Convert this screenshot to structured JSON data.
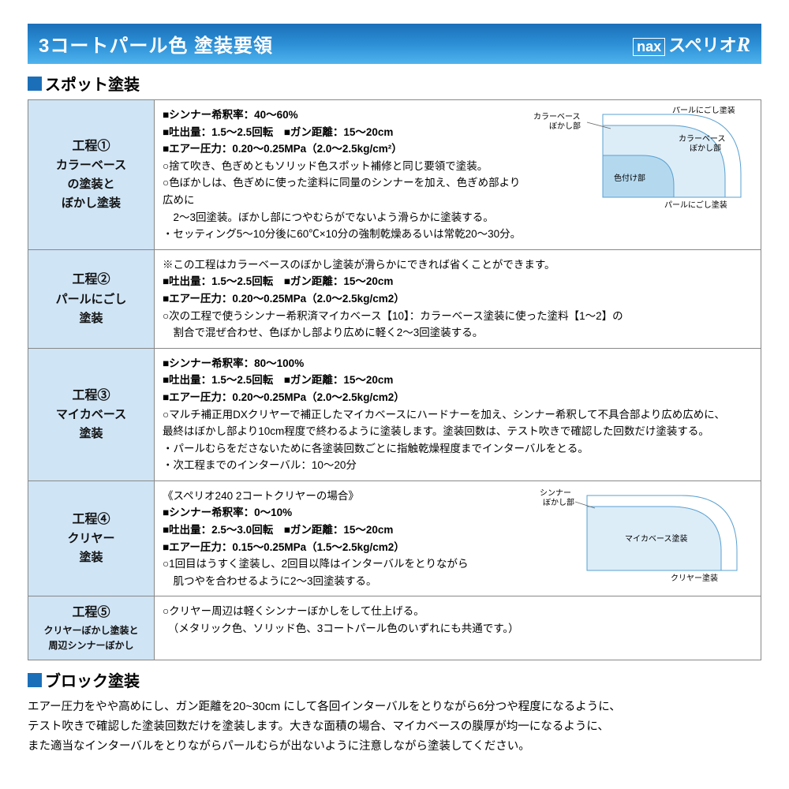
{
  "header": {
    "title": "3コートパール色 塗装要領",
    "brand_nax": "nax",
    "brand_name": "スペリオ",
    "brand_r": "R"
  },
  "section_spot_title": "スポット塗装",
  "section_block_title": "ブロック塗装",
  "rows": [
    {
      "step_no": "工程①",
      "step_name": "カラーベース\nの塗装と\nぼかし塗装",
      "lines": [
        {
          "mark": "square",
          "text": "シンナー希釈率：40～60%"
        },
        {
          "mark": "square",
          "text": "吐出量：1.5～2.5回転　■ガン距離：15～20cm"
        },
        {
          "mark": "square",
          "text": "エアー圧力：0.20～0.25MPa（2.0～2.5kg/cm²）"
        },
        {
          "mark": "circle",
          "text": "捨て吹き、色ぎめともソリッド色スポット補修と同じ要領で塗装。"
        },
        {
          "mark": "circle",
          "text": "色ぼかしは、色ぎめに使った塗料に同量のシンナーを加え、色ぎめ部より広めに\n　2～3回塗装。ぼかし部につやむらがでないよう滑らかに塗装する。"
        },
        {
          "mark": "dot",
          "text": "セッティング5～10分後に60℃×10分の強制乾燥あるいは常乾20～30分。"
        }
      ],
      "diagram": "d1"
    },
    {
      "step_no": "工程②",
      "step_name": "パールにごし\n塗装",
      "lines": [
        {
          "mark": "note",
          "text": "この工程はカラーベースのぼかし塗装が滑らかにできれば省くことができます。"
        },
        {
          "mark": "square",
          "text": "吐出量：1.5～2.5回転　■ガン距離：15～20cm"
        },
        {
          "mark": "square",
          "text": "エアー圧力：0.20～0.25MPa（2.0～2.5kg/cm2）"
        },
        {
          "mark": "circle",
          "text": "次の工程で使うシンナー希釈済マイカベース【10】：カラーベース塗装に使った塗料【1～2】の\n　割合で混ぜ合わせ、色ぼかし部より広めに軽く2～3回塗装する。"
        }
      ]
    },
    {
      "step_no": "工程③",
      "step_name": "マイカベース\n塗装",
      "lines": [
        {
          "mark": "square",
          "text": "シンナー希釈率：80～100%"
        },
        {
          "mark": "square",
          "text": "吐出量：1.5～2.5回転　■ガン距離：15～20cm"
        },
        {
          "mark": "square",
          "text": "エアー圧力：0.20～0.25MPa（2.0～2.5kg/cm2）"
        },
        {
          "mark": "circle",
          "text": "マルチ補正用DXクリヤーで補正したマイカベースにハードナーを加え、シンナー希釈して不具合部より広め広めに、\n最終はぼかし部より10cm程度で終わるように塗装します。塗装回数は、テスト吹きで確認した回数だけ塗装する。"
        },
        {
          "mark": "dot",
          "text": "パールむらをださないために各塗装回数ごとに指触乾燥程度までインターバルをとる。"
        },
        {
          "mark": "dot",
          "text": "次工程までのインターバル：10～20分"
        }
      ]
    },
    {
      "step_no": "工程④",
      "step_name": "クリヤー\n塗装",
      "lines": [
        {
          "mark": "",
          "text": "《スペリオ240 2コートクリヤーの場合》"
        },
        {
          "mark": "square",
          "text": "シンナー希釈率：0～10%"
        },
        {
          "mark": "square",
          "text": "吐出量：2.5～3.0回転　■ガン距離：15～20cm"
        },
        {
          "mark": "square",
          "text": "エアー圧力：0.15～0.25MPa（1.5～2.5kg/cm2）"
        },
        {
          "mark": "circle",
          "text": "1回目はうすく塗装し、2回目以降はインターバルをとりながら\n　肌つやを合わせるように2～3回塗装する。"
        }
      ],
      "diagram": "d2"
    },
    {
      "step_no": "工程⑤",
      "step_name_small": "クリヤーぼかし塗装と\n周辺シンナーぼかし",
      "lines": [
        {
          "mark": "circle",
          "text": "クリヤー周辺は軽くシンナーぼかしをして仕上げる。\n　（メタリック色、ソリッド色、3コートパール色のいずれにも共通です。）"
        }
      ]
    }
  ],
  "block_text": "エアー圧力をやや高めにし、ガン距離を20~30cm にして各回インターバルをとりながら6分つや程度になるように、\nテスト吹きで確認した塗装回数だけを塗装します。大きな面積の場合、マイカベースの膜厚が均一になるように、\nまた適当なインターバルをとりながらパールむらが出ないように注意しながら塗装してください。",
  "diagram1": {
    "labels": {
      "color_base_fade": "カラーベース\nぼかし部",
      "pearl_fade": "パールにごし塗装",
      "color_base_fade2": "カラーベース\nぼかし部",
      "colored": "色付け部",
      "pearl_fade_bottom": "パールにごし塗装"
    },
    "colors": {
      "outer": "#ffffff",
      "mid": "#dcedf8",
      "inner": "#b4d9ef",
      "stroke": "#5aa0d0"
    }
  },
  "diagram2": {
    "labels": {
      "thinner_fade": "シンナー\nぼかし部",
      "mica_base": "マイカベース塗装",
      "clear": "クリヤー塗装"
    },
    "colors": {
      "outer": "#ffffff",
      "mid": "#dcedf8",
      "stroke": "#5aa0d0"
    }
  }
}
